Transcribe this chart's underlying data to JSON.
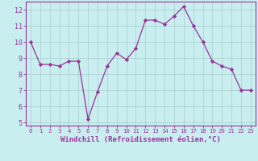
{
  "x": [
    0,
    1,
    2,
    3,
    4,
    5,
    6,
    7,
    8,
    9,
    10,
    11,
    12,
    13,
    14,
    15,
    16,
    17,
    18,
    19,
    20,
    21,
    22,
    23
  ],
  "y": [
    10.0,
    8.6,
    8.6,
    8.5,
    8.8,
    8.8,
    5.2,
    6.9,
    8.5,
    9.3,
    8.9,
    9.6,
    11.35,
    11.35,
    11.1,
    11.6,
    12.2,
    11.0,
    10.0,
    8.8,
    8.5,
    8.3,
    7.0,
    7.0
  ],
  "line_color": "#993399",
  "marker": "D",
  "marker_size": 2.2,
  "bg_color": "#c8eef0",
  "grid_color": "#aacccc",
  "xlabel": "Windchill (Refroidissement éolien,°C)",
  "ylim": [
    4.8,
    12.5
  ],
  "xlim": [
    -0.5,
    23.5
  ],
  "yticks": [
    5,
    6,
    7,
    8,
    9,
    10,
    11,
    12
  ],
  "xticks": [
    0,
    1,
    2,
    3,
    4,
    5,
    6,
    7,
    8,
    9,
    10,
    11,
    12,
    13,
    14,
    15,
    16,
    17,
    18,
    19,
    20,
    21,
    22,
    23
  ],
  "tick_color": "#993399",
  "axis_color": "#993399",
  "xlabel_fontsize": 6.5,
  "tick_fontsize_x": 5.2,
  "tick_fontsize_y": 6.0,
  "line_width": 0.9
}
